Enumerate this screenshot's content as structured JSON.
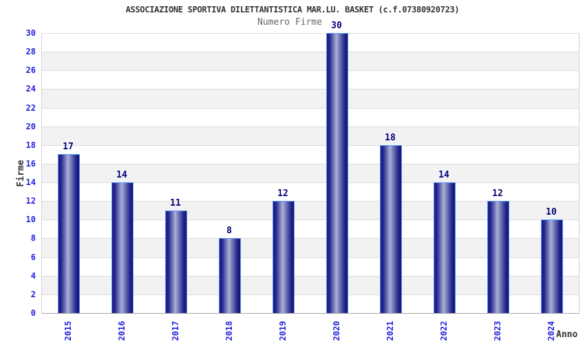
{
  "header": {
    "title": "ASSOCIAZIONE SPORTIVA DILETTANTISTICA MAR.LU. BASKET (c.f.07380920723)",
    "subtitle": "Numero Firme"
  },
  "chart_data": {
    "type": "bar",
    "title": "ASSOCIAZIONE SPORTIVA DILETTANTISTICA MAR.LU. BASKET (c.f.07380920723)",
    "subtitle": "Numero Firme",
    "categories": [
      "2015",
      "2016",
      "2017",
      "2018",
      "2019",
      "2020",
      "2021",
      "2022",
      "2023",
      "2024"
    ],
    "values": [
      17,
      14,
      11,
      8,
      12,
      30,
      18,
      14,
      12,
      10
    ],
    "xlabel": "Anno",
    "ylabel": "Firme",
    "ylim": [
      0,
      30
    ],
    "ytick_step": 2,
    "grid": "horizontal-with-alternating-bands",
    "legend": "none",
    "colors": {
      "bar_dark": "#1a1a82",
      "bar_dark2": "#26268e",
      "bar_mid": "#8890c4",
      "bar_light": "#aab1d8",
      "bar_end": "#14146e",
      "bar_border": "#4f97ff",
      "tick_label": "#2323dd",
      "value_label": "#00007d",
      "band": "#f2f2f2",
      "gridline": "#dcdcdc",
      "title": "#333333",
      "subtitle": "#666666",
      "axis_title": "#333333"
    }
  }
}
